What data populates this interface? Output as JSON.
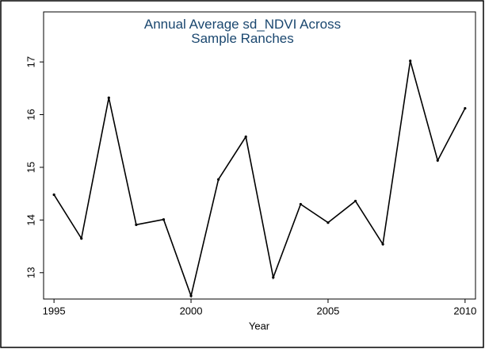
{
  "chart_data": {
    "type": "line",
    "title": "Annual Average sd_NDVI Across Sample Ranches",
    "x_label": "Year",
    "x": [
      1995,
      1996,
      1997,
      1998,
      1999,
      2000,
      2001,
      2002,
      2003,
      2004,
      2005,
      2006,
      2007,
      2008,
      2009,
      2010
    ],
    "values": [
      14.48,
      13.65,
      16.32,
      13.91,
      14.01,
      12.56,
      14.77,
      15.58,
      12.91,
      14.3,
      13.95,
      14.36,
      13.54,
      17.02,
      15.13,
      16.12
    ],
    "color": "#000000",
    "xlim": [
      1994.62,
      2010.38
    ],
    "xticks": [
      1995,
      2000,
      2005,
      2010
    ],
    "ylim": [
      12.5,
      17.95
    ],
    "yticks": [
      13,
      14,
      15,
      16,
      17
    ],
    "grid": false
  }
}
